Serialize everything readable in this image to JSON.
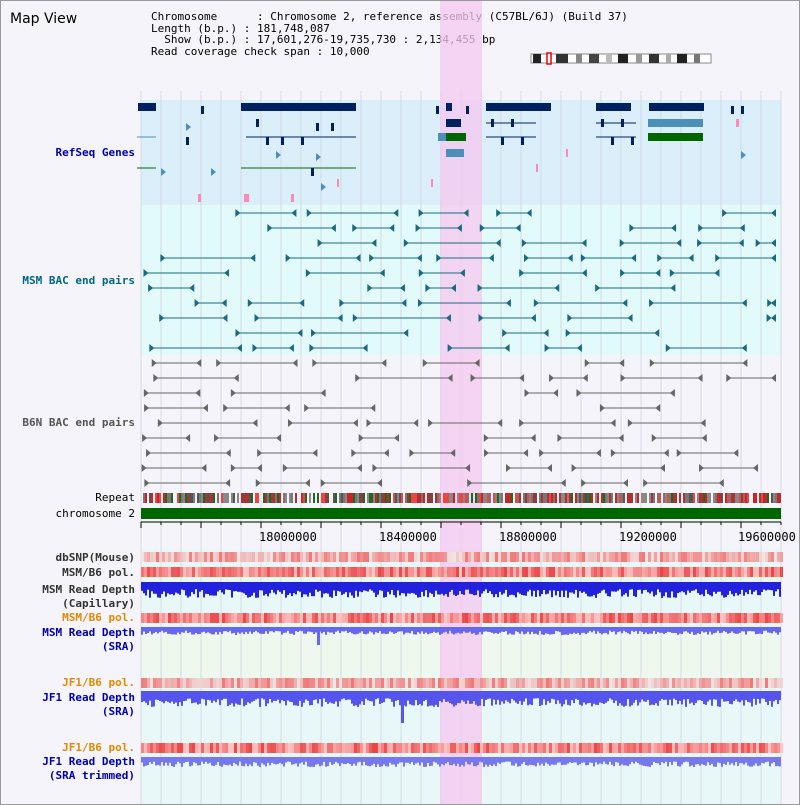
{
  "title": "Map View",
  "info": {
    "chromosome_label": "Chromosome",
    "chromosome_value": "Chromosome 2, reference assembly (C57BL/6J) (Build 37)",
    "length_label": "Length (b.p.)",
    "length_value": "181,748,087",
    "show_label": "Show (b.p.)",
    "show_value": "17,601,276-19,735,730 : 2,134,455 bp",
    "coverage_label": "Read coverage check span",
    "coverage_value": "10,000"
  },
  "tracks": {
    "refseq": "RefSeq Genes",
    "msm_bac": "MSM BAC end pairs",
    "b6n_bac": "B6N BAC end pairs",
    "repeat": "Repeat",
    "chromosome": "chromosome 2",
    "dbsnp": "dbSNP(Mouse)",
    "msm_b6_pol_1": "MSM/B6 pol.",
    "msm_read_depth_cap_1": "MSM Read Depth",
    "msm_read_depth_cap_2": "(Capillary)",
    "msm_b6_pol_2": "MSM/B6 pol.",
    "msm_read_depth_sra_1": "MSM Read Depth",
    "msm_read_depth_sra_2": "(SRA)",
    "jf1_b6_pol_1": "JF1/B6 pol.",
    "jf1_read_depth_1": "JF1 Read Depth",
    "jf1_read_depth_2": "(SRA)",
    "jf1_b6_pol_2": "JF1/B6 pol.",
    "jf1_read_depth_trim_1": "JF1 Read Depth",
    "jf1_read_depth_trim_2": "(SRA trimmed)"
  },
  "axis": {
    "ticks": [
      "18000000",
      "18400000",
      "18800000",
      "19200000",
      "19600000"
    ]
  },
  "colors": {
    "refseq_bg": "#dbeffa",
    "bac_bg": "#e2fafa",
    "highlight": "#f5c8f0",
    "chromosome_bar": "#006600",
    "depth_blue": "#3333ee",
    "pol_red": "#ee3333"
  }
}
